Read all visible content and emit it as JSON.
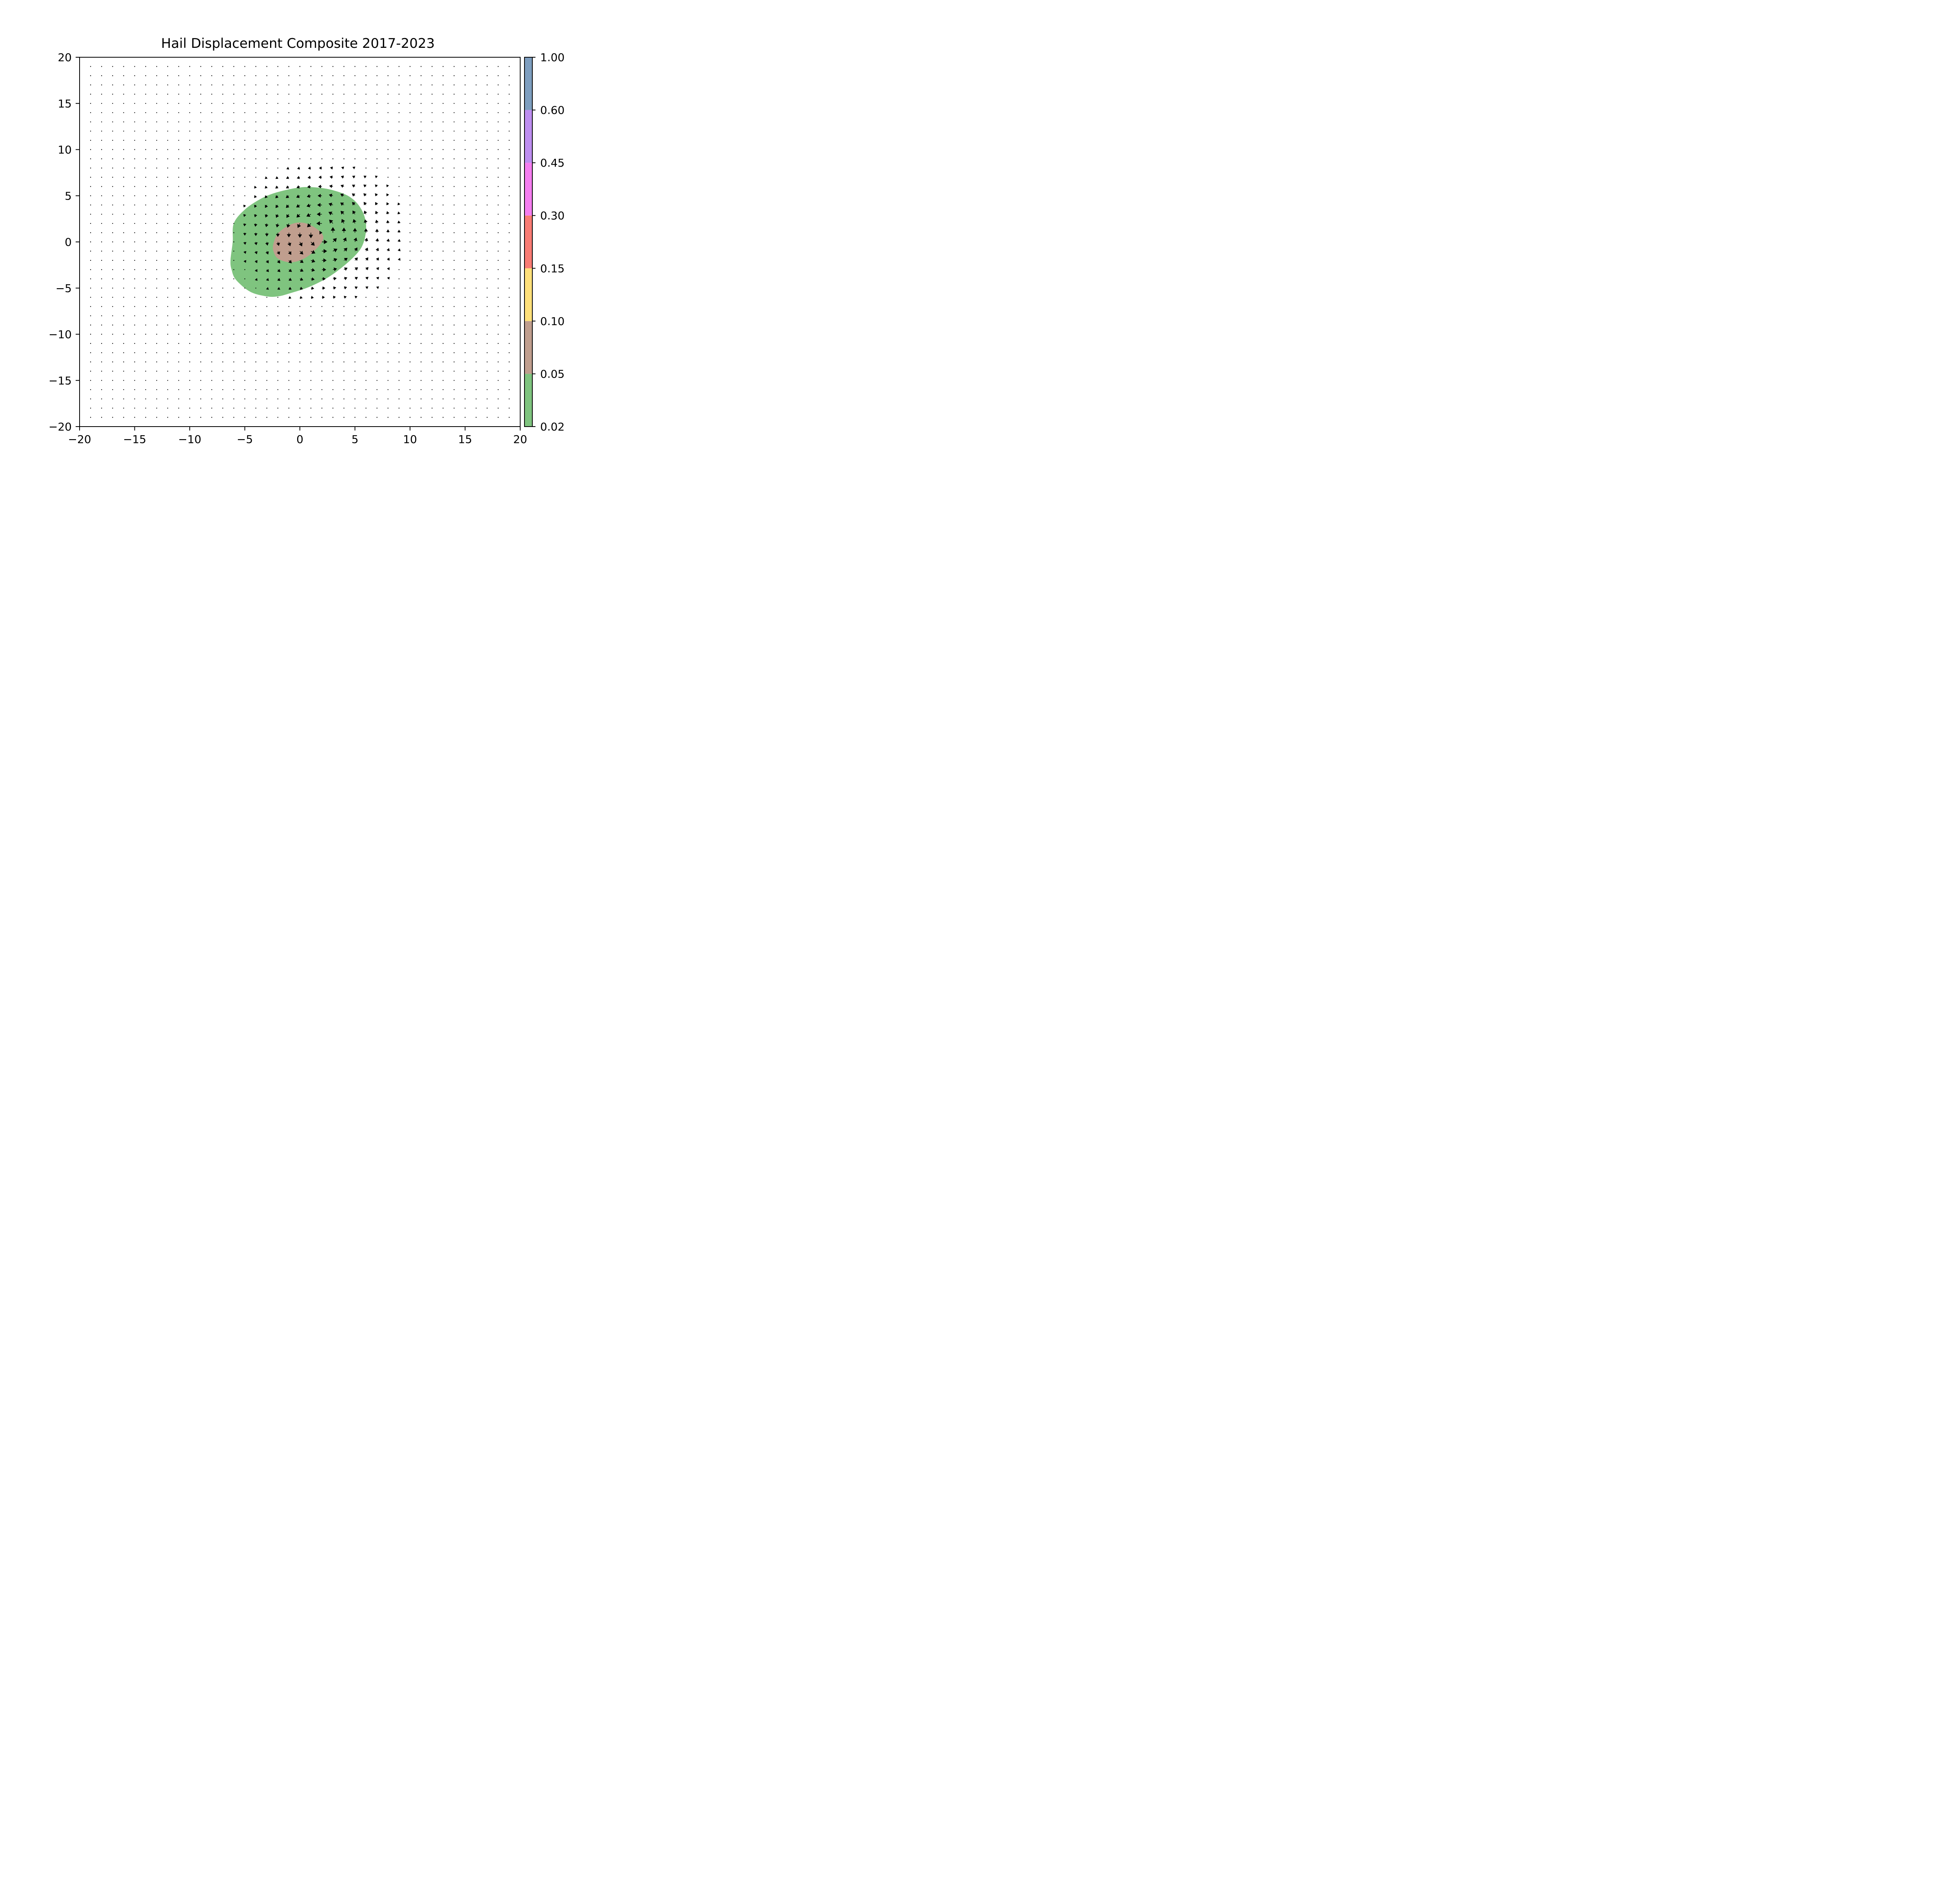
{
  "chart_data": {
    "type": "contour",
    "title": "Hail Displacement Composite 2017-2023",
    "xlabel": "",
    "ylabel": "",
    "xlim": [
      -20,
      20
    ],
    "ylim": [
      -20,
      20
    ],
    "x_ticks": [
      -20,
      -15,
      -10,
      -5,
      0,
      5,
      10,
      15,
      20
    ],
    "y_ticks": [
      -20,
      -15,
      -10,
      -5,
      0,
      5,
      10,
      15,
      20
    ],
    "x_tick_labels": [
      "−20",
      "−15",
      "−10",
      "−5",
      "0",
      "5",
      "10",
      "15",
      "20"
    ],
    "y_tick_labels": [
      "−20",
      "−15",
      "−10",
      "−5",
      "0",
      "5",
      "10",
      "15",
      "20"
    ],
    "grid": false,
    "contour_levels": [
      0.02,
      0.05,
      0.1,
      0.15,
      0.3,
      0.45,
      0.6,
      1.0
    ],
    "colorbar_labels": [
      "0.02",
      "0.05",
      "0.10",
      "0.15",
      "0.30",
      "0.45",
      "0.60",
      "1.00"
    ],
    "level_colors": [
      "#7fc47f",
      "#c09e8e",
      "#ffe07a",
      "#f97c74",
      "#f57ef0",
      "#be8ef0",
      "#7e9ebf"
    ],
    "contours": [
      {
        "level": 0.02,
        "color": "#7fc47f",
        "polygon": [
          [
            -6.0,
            2.0
          ],
          [
            -5.0,
            3.5
          ],
          [
            -3.5,
            4.7
          ],
          [
            -2.0,
            5.4
          ],
          [
            0.0,
            5.9
          ],
          [
            1.5,
            5.9
          ],
          [
            3.0,
            5.6
          ],
          [
            4.5,
            4.9
          ],
          [
            5.5,
            3.7
          ],
          [
            6.0,
            2.0
          ],
          [
            5.8,
            0.0
          ],
          [
            5.0,
            -1.5
          ],
          [
            3.0,
            -3.5
          ],
          [
            1.0,
            -4.8
          ],
          [
            -1.0,
            -5.6
          ],
          [
            -2.0,
            -5.9
          ],
          [
            -3.0,
            -5.9
          ],
          [
            -4.5,
            -5.4
          ],
          [
            -5.8,
            -4.1
          ],
          [
            -6.2,
            -3.0
          ],
          [
            -6.3,
            -2.0
          ],
          [
            -6.1,
            0.0
          ]
        ]
      },
      {
        "level": 0.05,
        "color": "#c09e8e",
        "polygon": [
          [
            -2.0,
            0.9
          ],
          [
            -1.0,
            1.8
          ],
          [
            0.0,
            2.1
          ],
          [
            1.0,
            1.8
          ],
          [
            2.0,
            0.9
          ],
          [
            2.0,
            0.0
          ],
          [
            1.0,
            -1.3
          ],
          [
            0.0,
            -2.0
          ],
          [
            -1.0,
            -2.2
          ],
          [
            -2.0,
            -1.8
          ],
          [
            -2.4,
            -1.0
          ],
          [
            -2.4,
            -0.2
          ]
        ]
      }
    ],
    "vector_field": {
      "x_start": -19,
      "x_step": 1,
      "y_start": -19,
      "y_step": 1,
      "count": 39,
      "center": [
        2,
        1
      ],
      "radius": 7,
      "direction": "counter-clockwise rotation centered near (2, 1)"
    }
  }
}
